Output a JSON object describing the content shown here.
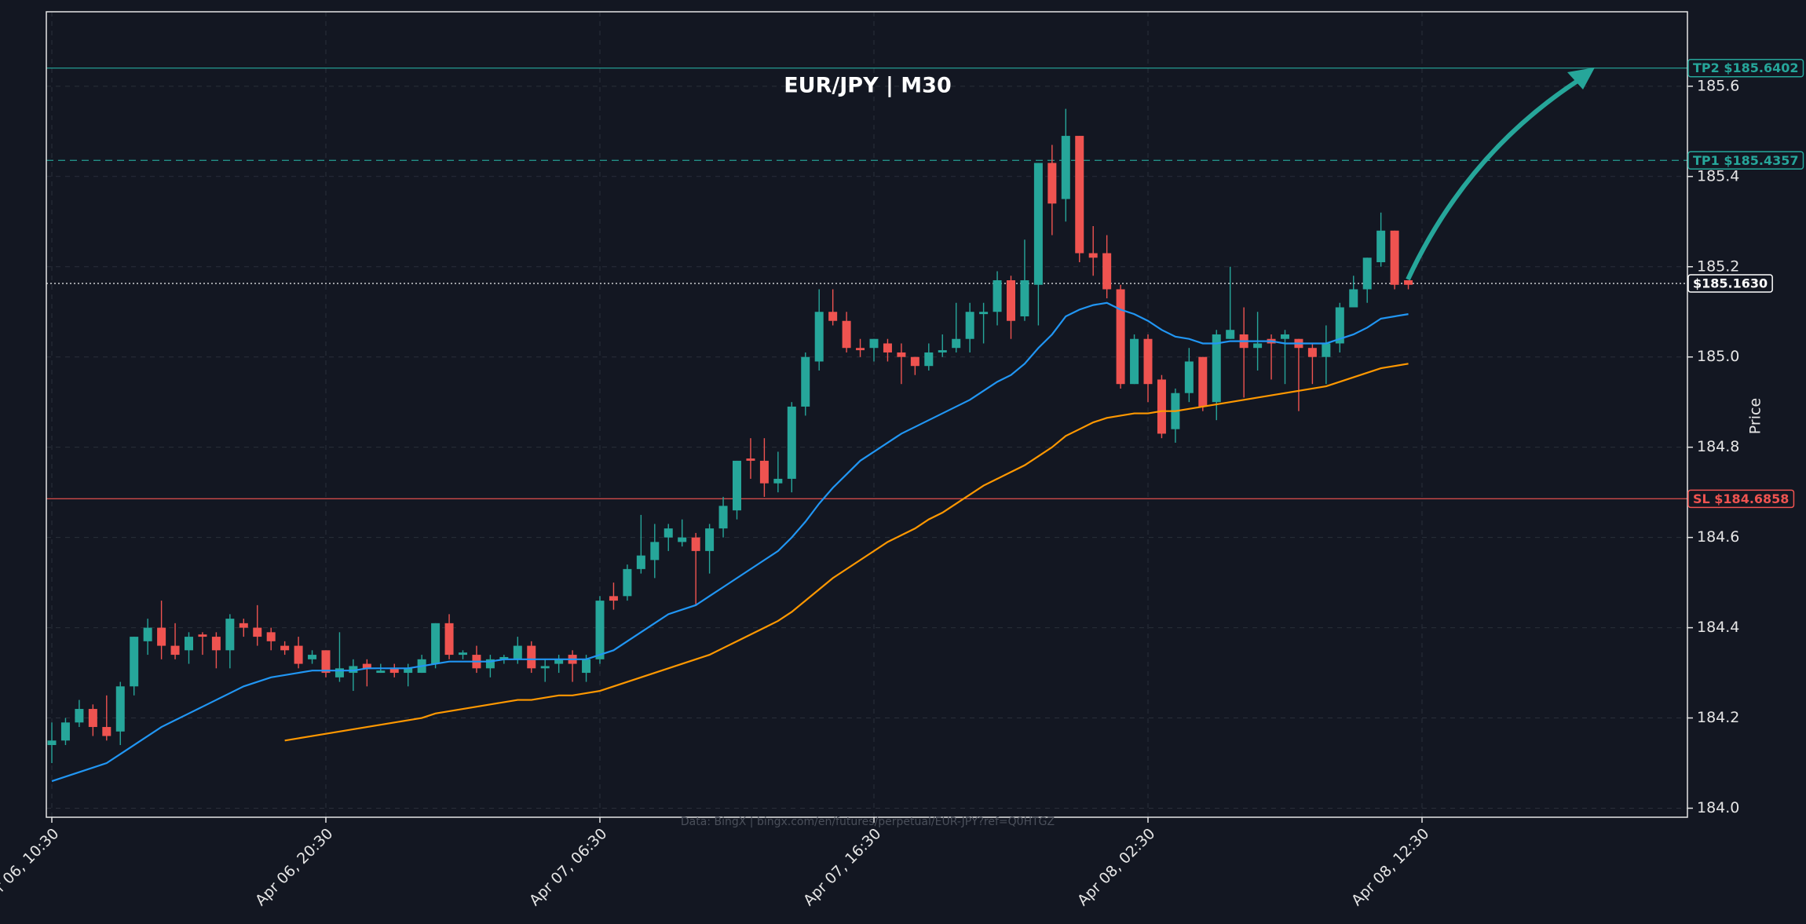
{
  "chart_data": {
    "type": "candlestick",
    "title": "EUR/JPY | M30",
    "y_label": "Price",
    "source": "Data: BingX | bingx.com/en/futures/perpetual/EUR-JPY?ref=Q0HTGZ",
    "up_color": "#26a69a",
    "down_color": "#ef5350",
    "grid": true,
    "x": [
      "Apr 06, 10:30",
      "Apr 06, 11:00",
      "Apr 06, 11:30",
      "Apr 06, 12:00",
      "Apr 06, 12:30",
      "Apr 06, 13:00",
      "Apr 06, 13:30",
      "Apr 06, 14:00",
      "Apr 06, 14:30",
      "Apr 06, 15:00",
      "Apr 06, 15:30",
      "Apr 06, 16:00",
      "Apr 06, 16:30",
      "Apr 06, 17:00",
      "Apr 06, 17:30",
      "Apr 06, 18:00",
      "Apr 06, 18:30",
      "Apr 06, 19:00",
      "Apr 06, 19:30",
      "Apr 06, 20:00",
      "Apr 06, 20:30",
      "Apr 06, 21:00",
      "Apr 06, 21:30",
      "Apr 06, 22:00",
      "Apr 06, 22:30",
      "Apr 06, 23:00",
      "Apr 06, 23:30",
      "Apr 07, 00:00",
      "Apr 07, 00:30",
      "Apr 07, 01:00",
      "Apr 07, 01:30",
      "Apr 07, 02:00",
      "Apr 07, 02:30",
      "Apr 07, 03:00",
      "Apr 07, 03:30",
      "Apr 07, 04:00",
      "Apr 07, 04:30",
      "Apr 07, 05:00",
      "Apr 07, 05:30",
      "Apr 07, 06:00",
      "Apr 07, 06:30",
      "Apr 07, 07:00",
      "Apr 07, 07:30",
      "Apr 07, 08:00",
      "Apr 07, 08:30",
      "Apr 07, 09:00",
      "Apr 07, 09:30",
      "Apr 07, 10:00",
      "Apr 07, 10:30",
      "Apr 07, 11:00",
      "Apr 07, 11:30",
      "Apr 07, 12:00",
      "Apr 07, 12:30",
      "Apr 07, 13:00",
      "Apr 07, 13:30",
      "Apr 07, 14:00",
      "Apr 07, 14:30",
      "Apr 07, 15:00",
      "Apr 07, 15:30",
      "Apr 07, 16:00",
      "Apr 07, 16:30",
      "Apr 07, 17:00",
      "Apr 07, 17:30",
      "Apr 07, 18:00",
      "Apr 07, 18:30",
      "Apr 07, 19:00",
      "Apr 07, 19:30",
      "Apr 07, 20:00",
      "Apr 07, 20:30",
      "Apr 07, 21:00",
      "Apr 07, 21:30",
      "Apr 07, 22:00",
      "Apr 07, 22:30",
      "Apr 07, 23:00",
      "Apr 07, 23:30",
      "Apr 08, 00:00",
      "Apr 08, 00:30",
      "Apr 08, 01:00",
      "Apr 08, 01:30",
      "Apr 08, 02:00",
      "Apr 08, 02:30",
      "Apr 08, 03:00",
      "Apr 08, 03:30",
      "Apr 08, 04:00",
      "Apr 08, 04:30",
      "Apr 08, 05:00",
      "Apr 08, 05:30",
      "Apr 08, 06:00",
      "Apr 08, 06:30",
      "Apr 08, 07:00",
      "Apr 08, 07:30",
      "Apr 08, 08:00",
      "Apr 08, 08:30",
      "Apr 08, 09:00",
      "Apr 08, 09:30",
      "Apr 08, 10:00",
      "Apr 08, 10:30",
      "Apr 08, 11:00",
      "Apr 08, 11:30",
      "Apr 08, 12:00"
    ],
    "open": [
      184.14,
      184.15,
      184.19,
      184.22,
      184.18,
      184.17,
      184.27,
      184.37,
      184.4,
      184.36,
      184.35,
      184.385,
      184.38,
      184.35,
      184.41,
      184.4,
      184.39,
      184.36,
      184.36,
      184.33,
      184.35,
      184.29,
      184.3,
      184.32,
      184.3,
      184.31,
      184.3,
      184.3,
      184.32,
      184.41,
      184.34,
      184.34,
      184.31,
      184.33,
      184.33,
      184.36,
      184.31,
      184.32,
      184.34,
      184.3,
      184.33,
      184.47,
      184.47,
      184.53,
      184.55,
      184.6,
      184.59,
      184.6,
      184.57,
      184.62,
      184.66,
      184.775,
      184.77,
      184.72,
      184.73,
      184.89,
      184.99,
      185.1,
      185.08,
      185.02,
      185.02,
      185.03,
      185.01,
      185.0,
      184.98,
      185.01,
      185.02,
      185.04,
      185.095,
      185.1,
      185.17,
      185.09,
      185.16,
      185.43,
      185.35,
      185.49,
      185.23,
      185.23,
      185.15,
      184.94,
      185.04,
      184.95,
      184.84,
      184.92,
      185.0,
      184.9,
      185.04,
      185.05,
      185.02,
      185.04,
      185.04,
      185.04,
      185.02,
      185.0,
      185.03,
      185.11,
      185.15,
      185.21,
      185.28,
      185.17
    ],
    "high": [
      184.19,
      184.2,
      184.24,
      184.23,
      184.25,
      184.28,
      184.38,
      184.42,
      184.46,
      184.41,
      184.39,
      184.39,
      184.39,
      184.43,
      184.42,
      184.45,
      184.4,
      184.37,
      184.38,
      184.35,
      184.35,
      184.39,
      184.33,
      184.33,
      184.32,
      184.32,
      184.32,
      184.34,
      184.41,
      184.43,
      184.35,
      184.36,
      184.34,
      184.34,
      184.38,
      184.37,
      184.33,
      184.34,
      184.35,
      184.34,
      184.47,
      184.5,
      184.54,
      184.65,
      184.63,
      184.63,
      184.64,
      184.61,
      184.63,
      184.69,
      184.77,
      184.82,
      184.82,
      184.79,
      184.9,
      185.01,
      185.15,
      185.15,
      185.1,
      185.04,
      185.04,
      185.04,
      185.03,
      185.0,
      185.03,
      185.05,
      185.12,
      185.12,
      185.12,
      185.19,
      185.18,
      185.26,
      185.43,
      185.47,
      185.55,
      185.49,
      185.29,
      185.27,
      185.16,
      185.05,
      185.05,
      184.96,
      184.93,
      185.02,
      185.0,
      185.06,
      185.2,
      185.11,
      185.1,
      185.05,
      185.06,
      185.04,
      185.03,
      185.07,
      185.12,
      185.18,
      185.22,
      185.32,
      185.28,
      185.17
    ],
    "low": [
      184.1,
      184.14,
      184.18,
      184.16,
      184.15,
      184.14,
      184.25,
      184.34,
      184.33,
      184.33,
      184.32,
      184.34,
      184.31,
      184.31,
      184.38,
      184.36,
      184.35,
      184.34,
      184.31,
      184.32,
      184.29,
      184.28,
      184.26,
      184.27,
      184.3,
      184.29,
      184.27,
      184.3,
      184.31,
      184.33,
      184.33,
      184.3,
      184.29,
      184.32,
      184.32,
      184.3,
      184.28,
      184.3,
      184.28,
      184.28,
      184.32,
      184.44,
      184.46,
      184.52,
      184.51,
      184.57,
      184.58,
      184.45,
      184.52,
      184.6,
      184.64,
      184.73,
      184.69,
      184.7,
      184.7,
      184.87,
      184.97,
      185.07,
      185.01,
      185.0,
      184.99,
      184.99,
      184.94,
      184.96,
      184.97,
      185.0,
      185.01,
      185.01,
      185.03,
      185.07,
      185.04,
      185.08,
      185.07,
      185.27,
      185.3,
      185.21,
      185.18,
      185.13,
      184.93,
      184.94,
      184.9,
      184.82,
      184.81,
      184.9,
      184.88,
      184.86,
      185.04,
      184.91,
      184.97,
      184.95,
      184.94,
      184.88,
      184.94,
      184.94,
      185.01,
      185.12,
      185.12,
      185.2,
      185.15,
      185.15
    ],
    "close": [
      184.15,
      184.19,
      184.22,
      184.18,
      184.16,
      184.27,
      184.38,
      184.4,
      184.36,
      184.34,
      184.38,
      184.38,
      184.35,
      184.42,
      184.4,
      184.38,
      184.37,
      184.35,
      184.32,
      184.34,
      184.3,
      184.31,
      184.315,
      184.31,
      184.305,
      184.3,
      184.31,
      184.33,
      184.41,
      184.34,
      184.345,
      184.31,
      184.33,
      184.335,
      184.36,
      184.31,
      184.315,
      184.33,
      184.32,
      184.33,
      184.46,
      184.46,
      184.53,
      184.56,
      184.59,
      184.62,
      184.6,
      184.57,
      184.62,
      184.67,
      184.77,
      184.77,
      184.72,
      184.73,
      184.89,
      185.0,
      185.1,
      185.08,
      185.02,
      185.015,
      185.04,
      185.01,
      185.0,
      184.98,
      185.01,
      185.015,
      185.04,
      185.1,
      185.1,
      185.17,
      185.08,
      185.17,
      185.43,
      185.34,
      185.49,
      185.23,
      185.22,
      185.15,
      184.94,
      185.04,
      184.94,
      184.83,
      184.92,
      184.99,
      184.89,
      185.05,
      185.06,
      185.02,
      185.03,
      185.03,
      185.05,
      185.02,
      185.0,
      185.03,
      185.11,
      185.15,
      185.22,
      185.28,
      185.16,
      185.16
    ],
    "lines": [
      {
        "color": "#2196f3",
        "values": [
          184.06,
          184.07,
          184.08,
          184.09,
          184.1,
          184.12,
          184.14,
          184.16,
          184.18,
          184.195,
          184.21,
          184.225,
          184.24,
          184.255,
          184.27,
          184.28,
          184.29,
          184.295,
          184.3,
          184.305,
          184.305,
          184.305,
          184.305,
          184.31,
          184.31,
          184.31,
          184.31,
          184.315,
          184.32,
          184.325,
          184.325,
          184.325,
          184.325,
          184.33,
          184.33,
          184.33,
          184.33,
          184.33,
          184.33,
          184.33,
          184.34,
          184.35,
          184.37,
          184.39,
          184.41,
          184.43,
          184.44,
          184.45,
          184.47,
          184.49,
          184.51,
          184.53,
          184.55,
          184.57,
          184.6,
          184.635,
          184.675,
          184.71,
          184.74,
          184.77,
          184.79,
          184.81,
          184.83,
          184.845,
          184.86,
          184.875,
          184.89,
          184.905,
          184.925,
          184.945,
          184.96,
          184.985,
          185.02,
          185.05,
          185.09,
          185.105,
          185.115,
          185.12,
          185.105,
          185.095,
          185.08,
          185.06,
          185.045,
          185.04,
          185.03,
          185.03,
          185.035,
          185.035,
          185.035,
          185.035,
          185.03,
          185.03,
          185.03,
          185.03,
          185.04,
          185.05,
          185.065,
          185.085,
          185.09,
          185.095
        ]
      },
      {
        "color": "#ff9800",
        "values": [
          null,
          null,
          null,
          null,
          null,
          null,
          null,
          null,
          null,
          null,
          null,
          null,
          null,
          null,
          null,
          null,
          null,
          184.15,
          184.155,
          184.16,
          184.165,
          184.17,
          184.175,
          184.18,
          184.185,
          184.19,
          184.195,
          184.2,
          184.21,
          184.215,
          184.22,
          184.225,
          184.23,
          184.235,
          184.24,
          184.24,
          184.245,
          184.25,
          184.25,
          184.255,
          184.26,
          184.27,
          184.28,
          184.29,
          184.3,
          184.31,
          184.32,
          184.33,
          184.34,
          184.355,
          184.37,
          184.385,
          184.4,
          184.415,
          184.435,
          184.46,
          184.485,
          184.51,
          184.53,
          184.55,
          184.57,
          184.59,
          184.605,
          184.62,
          184.64,
          184.655,
          184.675,
          184.695,
          184.715,
          184.73,
          184.745,
          184.76,
          184.78,
          184.8,
          184.825,
          184.84,
          184.855,
          184.865,
          184.87,
          184.875,
          184.875,
          184.88,
          184.88,
          184.885,
          184.89,
          184.895,
          184.9,
          184.905,
          184.91,
          184.915,
          184.92,
          184.925,
          184.93,
          184.935,
          184.945,
          184.955,
          184.965,
          184.975,
          184.98,
          184.985
        ]
      }
    ],
    "levels": [
      {
        "label": "TP2 $185.6402",
        "value": 185.6402,
        "color": "#26a69a",
        "style": "solid"
      },
      {
        "label": "TP1 $185.4357",
        "value": 185.4357,
        "color": "#26a69a",
        "style": "dashed"
      },
      {
        "label": "$185.1630",
        "value": 185.163,
        "color": "#ffffff",
        "style": "dotted"
      },
      {
        "label": "SL $184.6858",
        "value": 184.6858,
        "color": "#ef5350",
        "style": "solid"
      }
    ],
    "ylim": [
      183.98,
      185.765
    ],
    "yticks": [
      {
        "value": 184,
        "label": "184.0"
      },
      184.2,
      184.4,
      184.6,
      184.8,
      {
        "value": 185,
        "label": "185.0"
      },
      185.2,
      185.4,
      185.6
    ],
    "xticks": [
      "Apr 06, 10:30",
      "Apr 06, 20:30",
      "Apr 07, 06:30",
      "Apr 07, 16:30",
      "Apr 08, 02:30",
      "Apr 08, 12:30"
    ]
  }
}
